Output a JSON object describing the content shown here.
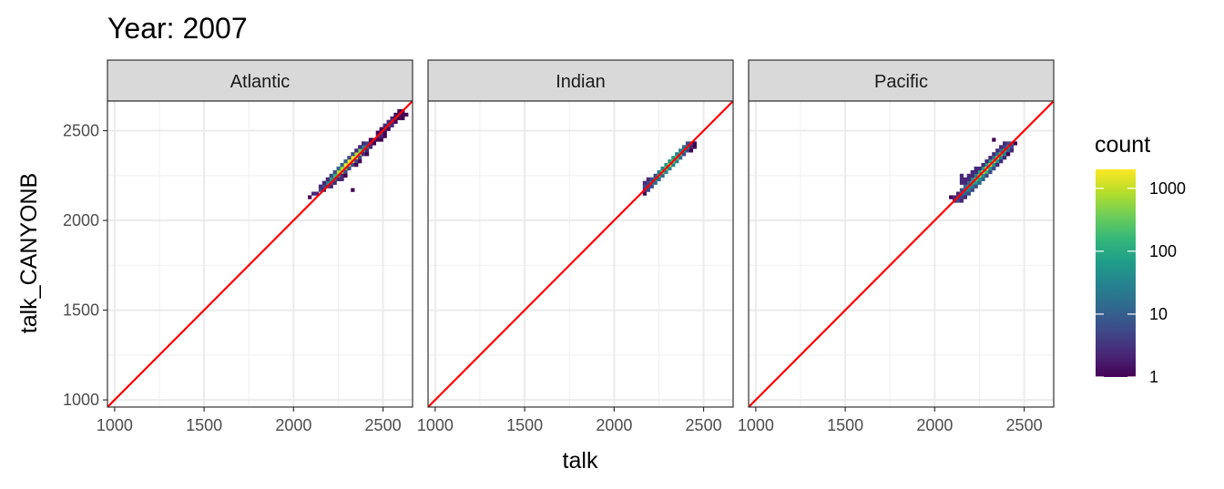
{
  "chart_data": {
    "type": "heatmap",
    "title": "Year: 2007",
    "xlabel": "talk",
    "ylabel": "talk_CANYONB",
    "xlim": [
      960,
      2665
    ],
    "ylim": [
      960,
      2665
    ],
    "x_ticks": [
      1000,
      1500,
      2000,
      2500
    ],
    "y_ticks": [
      1000,
      1500,
      2000,
      2500
    ],
    "x_tick_labels": [
      "1000",
      "1500",
      "2000",
      "2500"
    ],
    "y_tick_labels": [
      "1000",
      "1500",
      "2000",
      "2500"
    ],
    "grid": true,
    "reference_line": {
      "type": "identity",
      "slope": 1,
      "intercept": 0,
      "color": "#ff0000"
    },
    "bin_size": 20,
    "legend": {
      "title": "count",
      "placement": "right",
      "scale": "log10",
      "range": [
        1,
        2000
      ],
      "breaks": [
        1000,
        100,
        10,
        1
      ],
      "break_labels": [
        "1000",
        "100",
        "10",
        "1"
      ],
      "colors": [
        "#440154",
        "#482878",
        "#3e4989",
        "#31688e",
        "#26828e",
        "#1f9e89",
        "#35b779",
        "#6ece58",
        "#b5de2b",
        "#fde725"
      ]
    },
    "facets": [
      {
        "label": "Atlantic",
        "bins": [
          [
            2090,
            2130,
            1
          ],
          [
            2110,
            2150,
            2
          ],
          [
            2130,
            2150,
            3
          ],
          [
            2150,
            2170,
            4
          ],
          [
            2150,
            2190,
            3
          ],
          [
            2170,
            2190,
            8
          ],
          [
            2190,
            2190,
            5
          ],
          [
            2190,
            2210,
            20
          ],
          [
            2210,
            2210,
            15
          ],
          [
            2210,
            2230,
            60
          ],
          [
            2230,
            2230,
            30
          ],
          [
            2230,
            2250,
            150
          ],
          [
            2250,
            2250,
            120
          ],
          [
            2250,
            2270,
            600
          ],
          [
            2270,
            2270,
            250
          ],
          [
            2270,
            2290,
            900
          ],
          [
            2290,
            2290,
            500
          ],
          [
            2290,
            2310,
            1500
          ],
          [
            2310,
            2310,
            800
          ],
          [
            2310,
            2330,
            2000
          ],
          [
            2330,
            2330,
            1200
          ],
          [
            2330,
            2350,
            1500
          ],
          [
            2350,
            2350,
            800
          ],
          [
            2350,
            2370,
            900
          ],
          [
            2370,
            2370,
            400
          ],
          [
            2370,
            2390,
            250
          ],
          [
            2390,
            2390,
            100
          ],
          [
            2390,
            2410,
            40
          ],
          [
            2410,
            2410,
            20
          ],
          [
            2410,
            2430,
            5
          ],
          [
            2430,
            2430,
            3
          ],
          [
            2170,
            2210,
            2
          ],
          [
            2190,
            2230,
            3
          ],
          [
            2210,
            2250,
            4
          ],
          [
            2230,
            2270,
            8
          ],
          [
            2250,
            2290,
            10
          ],
          [
            2270,
            2310,
            12
          ],
          [
            2290,
            2330,
            10
          ],
          [
            2310,
            2350,
            6
          ],
          [
            2330,
            2370,
            4
          ],
          [
            2350,
            2390,
            3
          ],
          [
            2370,
            2410,
            2
          ],
          [
            2390,
            2430,
            2
          ],
          [
            2250,
            2230,
            2
          ],
          [
            2270,
            2250,
            3
          ],
          [
            2290,
            2270,
            4
          ],
          [
            2310,
            2290,
            6
          ],
          [
            2330,
            2310,
            8
          ],
          [
            2350,
            2330,
            6
          ],
          [
            2370,
            2350,
            4
          ],
          [
            2390,
            2370,
            3
          ],
          [
            2410,
            2390,
            2
          ],
          [
            2410,
            2370,
            1
          ],
          [
            2330,
            2170,
            1
          ],
          [
            2170,
            2170,
            2
          ],
          [
            2230,
            2210,
            2
          ],
          [
            2210,
            2190,
            2
          ],
          [
            2270,
            2230,
            2
          ],
          [
            2290,
            2250,
            1
          ],
          [
            2350,
            2310,
            1
          ],
          [
            2370,
            2330,
            1
          ],
          [
            2450,
            2450,
            3
          ],
          [
            2470,
            2470,
            3
          ],
          [
            2490,
            2490,
            4
          ],
          [
            2510,
            2510,
            3
          ],
          [
            2530,
            2530,
            4
          ],
          [
            2550,
            2550,
            3
          ],
          [
            2570,
            2570,
            2
          ],
          [
            2590,
            2590,
            2
          ],
          [
            2610,
            2590,
            1
          ],
          [
            2490,
            2470,
            2
          ],
          [
            2510,
            2530,
            2
          ],
          [
            2530,
            2550,
            2
          ],
          [
            2550,
            2570,
            2
          ],
          [
            2570,
            2590,
            1
          ],
          [
            2590,
            2570,
            1
          ],
          [
            2510,
            2490,
            1
          ],
          [
            2470,
            2450,
            1
          ],
          [
            2430,
            2450,
            1
          ],
          [
            2490,
            2510,
            1
          ],
          [
            2550,
            2530,
            2
          ],
          [
            2530,
            2510,
            1
          ],
          [
            2570,
            2550,
            1
          ],
          [
            2610,
            2570,
            1
          ],
          [
            2630,
            2590,
            1
          ],
          [
            2590,
            2610,
            1
          ],
          [
            2610,
            2610,
            1
          ],
          [
            2450,
            2430,
            1
          ],
          [
            2470,
            2490,
            1
          ],
          [
            2430,
            2410,
            2
          ],
          [
            2510,
            2470,
            1
          ],
          [
            2490,
            2450,
            1
          ]
        ]
      },
      {
        "label": "Indian",
        "bins": [
          [
            2170,
            2150,
            1
          ],
          [
            2170,
            2170,
            2
          ],
          [
            2170,
            2190,
            4
          ],
          [
            2170,
            2210,
            3
          ],
          [
            2190,
            2170,
            4
          ],
          [
            2190,
            2190,
            6
          ],
          [
            2190,
            2210,
            5
          ],
          [
            2190,
            2230,
            2
          ],
          [
            2210,
            2190,
            8
          ],
          [
            2210,
            2210,
            20
          ],
          [
            2210,
            2230,
            6
          ],
          [
            2230,
            2210,
            10
          ],
          [
            2230,
            2230,
            60
          ],
          [
            2230,
            2250,
            8
          ],
          [
            2250,
            2230,
            12
          ],
          [
            2250,
            2250,
            150
          ],
          [
            2250,
            2270,
            20
          ],
          [
            2270,
            2250,
            15
          ],
          [
            2270,
            2270,
            300
          ],
          [
            2270,
            2290,
            40
          ],
          [
            2290,
            2270,
            20
          ],
          [
            2290,
            2290,
            500
          ],
          [
            2290,
            2310,
            60
          ],
          [
            2310,
            2290,
            25
          ],
          [
            2310,
            2310,
            600
          ],
          [
            2310,
            2330,
            80
          ],
          [
            2330,
            2310,
            25
          ],
          [
            2330,
            2330,
            500
          ],
          [
            2330,
            2350,
            60
          ],
          [
            2350,
            2330,
            20
          ],
          [
            2350,
            2350,
            300
          ],
          [
            2350,
            2370,
            40
          ],
          [
            2370,
            2350,
            12
          ],
          [
            2370,
            2370,
            150
          ],
          [
            2370,
            2390,
            20
          ],
          [
            2390,
            2370,
            8
          ],
          [
            2390,
            2390,
            60
          ],
          [
            2390,
            2410,
            10
          ],
          [
            2410,
            2390,
            4
          ],
          [
            2410,
            2410,
            20
          ],
          [
            2410,
            2430,
            4
          ],
          [
            2430,
            2410,
            2
          ],
          [
            2430,
            2430,
            6
          ],
          [
            2450,
            2430,
            1
          ],
          [
            2450,
            2410,
            1
          ],
          [
            2430,
            2390,
            1
          ]
        ]
      },
      {
        "label": "Pacific",
        "bins": [
          [
            2090,
            2130,
            1
          ],
          [
            2110,
            2110,
            2
          ],
          [
            2110,
            2130,
            3
          ],
          [
            2130,
            2130,
            4
          ],
          [
            2130,
            2150,
            3
          ],
          [
            2150,
            2150,
            10
          ],
          [
            2150,
            2170,
            6
          ],
          [
            2170,
            2170,
            30
          ],
          [
            2170,
            2190,
            10
          ],
          [
            2190,
            2190,
            80
          ],
          [
            2190,
            2210,
            15
          ],
          [
            2210,
            2210,
            200
          ],
          [
            2210,
            2230,
            25
          ],
          [
            2230,
            2230,
            500
          ],
          [
            2230,
            2250,
            40
          ],
          [
            2250,
            2250,
            900
          ],
          [
            2250,
            2270,
            60
          ],
          [
            2270,
            2270,
            1500
          ],
          [
            2270,
            2290,
            80
          ],
          [
            2290,
            2290,
            2000
          ],
          [
            2290,
            2310,
            80
          ],
          [
            2310,
            2310,
            1500
          ],
          [
            2310,
            2330,
            60
          ],
          [
            2330,
            2330,
            1000
          ],
          [
            2330,
            2350,
            40
          ],
          [
            2350,
            2350,
            600
          ],
          [
            2350,
            2370,
            25
          ],
          [
            2370,
            2370,
            300
          ],
          [
            2370,
            2390,
            15
          ],
          [
            2390,
            2390,
            150
          ],
          [
            2390,
            2410,
            8
          ],
          [
            2410,
            2410,
            50
          ],
          [
            2410,
            2430,
            4
          ],
          [
            2430,
            2430,
            10
          ],
          [
            2130,
            2110,
            4
          ],
          [
            2150,
            2130,
            8
          ],
          [
            2170,
            2150,
            15
          ],
          [
            2190,
            2170,
            25
          ],
          [
            2210,
            2190,
            40
          ],
          [
            2230,
            2210,
            60
          ],
          [
            2250,
            2230,
            80
          ],
          [
            2270,
            2250,
            100
          ],
          [
            2290,
            2270,
            120
          ],
          [
            2310,
            2290,
            100
          ],
          [
            2330,
            2310,
            80
          ],
          [
            2350,
            2330,
            60
          ],
          [
            2370,
            2350,
            40
          ],
          [
            2390,
            2370,
            25
          ],
          [
            2410,
            2390,
            15
          ],
          [
            2430,
            2410,
            6
          ],
          [
            2150,
            2110,
            2
          ],
          [
            2170,
            2130,
            3
          ],
          [
            2190,
            2150,
            4
          ],
          [
            2210,
            2170,
            6
          ],
          [
            2230,
            2190,
            8
          ],
          [
            2250,
            2210,
            10
          ],
          [
            2270,
            2230,
            10
          ],
          [
            2290,
            2250,
            8
          ],
          [
            2310,
            2270,
            6
          ],
          [
            2330,
            2290,
            4
          ],
          [
            2350,
            2310,
            3
          ],
          [
            2370,
            2330,
            2
          ],
          [
            2390,
            2350,
            2
          ],
          [
            2410,
            2370,
            1
          ],
          [
            2150,
            2250,
            2
          ],
          [
            2150,
            2230,
            2
          ],
          [
            2150,
            2210,
            3
          ],
          [
            2170,
            2210,
            2
          ],
          [
            2170,
            2230,
            2
          ],
          [
            2190,
            2230,
            3
          ],
          [
            2190,
            2250,
            2
          ],
          [
            2210,
            2250,
            2
          ],
          [
            2210,
            2270,
            2
          ],
          [
            2230,
            2270,
            3
          ],
          [
            2230,
            2290,
            2
          ],
          [
            2250,
            2290,
            3
          ],
          [
            2270,
            2310,
            3
          ],
          [
            2290,
            2330,
            2
          ],
          [
            2310,
            2350,
            2
          ],
          [
            2330,
            2370,
            2
          ],
          [
            2350,
            2390,
            2
          ],
          [
            2370,
            2410,
            2
          ],
          [
            2390,
            2430,
            2
          ],
          [
            2330,
            2450,
            1
          ],
          [
            2450,
            2430,
            1
          ],
          [
            2430,
            2390,
            2
          ]
        ]
      }
    ]
  }
}
